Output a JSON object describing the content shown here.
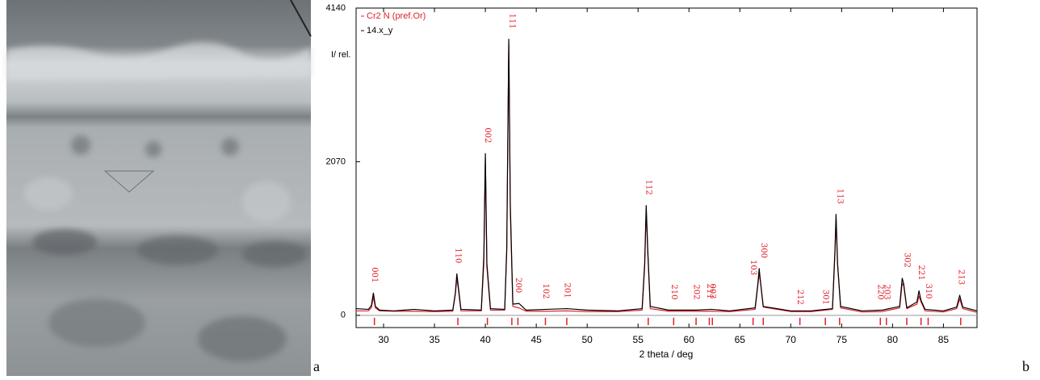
{
  "panel_labels": [
    "a",
    "b"
  ],
  "chart_data": {
    "type": "line",
    "xlabel": "2 theta / deg",
    "ylabel": "I/ rel.",
    "xlim": [
      27.3,
      88.3
    ],
    "xticks": [
      30,
      35,
      40,
      45,
      50,
      55,
      60,
      65,
      70,
      75,
      80,
      85
    ],
    "ylim": [
      -165,
      4140
    ],
    "yticks": [
      0,
      2070,
      4140
    ],
    "legend": "upper left",
    "x": [
      27.3,
      28.5,
      28.8,
      29.0,
      29.2,
      29.6,
      31.0,
      33.0,
      35.0,
      36.8,
      37.05,
      37.2,
      37.35,
      37.6,
      39.6,
      39.85,
      40.0,
      40.15,
      40.5,
      41.9,
      42.1,
      42.3,
      42.45,
      42.7,
      43.3,
      44.0,
      46.0,
      48.0,
      50.0,
      53.0,
      55.4,
      55.65,
      55.8,
      55.95,
      56.2,
      58.0,
      60.7,
      62.2,
      64.0,
      66.5,
      66.75,
      66.9,
      67.05,
      67.3,
      70.0,
      72.0,
      74.1,
      74.35,
      74.45,
      74.6,
      74.9,
      77.0,
      79.0,
      80.7,
      80.95,
      81.1,
      81.4,
      82.4,
      82.6,
      82.8,
      83.2,
      85.0,
      86.3,
      86.6,
      86.9,
      88.3
    ],
    "series": [
      {
        "name": "Cr2 N (pref.Or)",
        "color": "#e0202a",
        "values": [
          60,
          60,
          100,
          250,
          100,
          60,
          55,
          55,
          50,
          55,
          280,
          500,
          350,
          60,
          60,
          700,
          2120,
          650,
          70,
          70,
          850,
          3680,
          1400,
          120,
          100,
          55,
          55,
          60,
          50,
          50,
          70,
          650,
          1420,
          850,
          90,
          55,
          55,
          55,
          50,
          80,
          380,
          560,
          430,
          110,
          50,
          50,
          80,
          850,
          1300,
          680,
          100,
          45,
          50,
          100,
          430,
          400,
          90,
          150,
          260,
          180,
          60,
          45,
          90,
          220,
          90,
          40
        ]
      },
      {
        "name": "14.x_y",
        "color": "#000000",
        "values": [
          90,
          80,
          130,
          300,
          120,
          70,
          60,
          80,
          60,
          70,
          300,
          560,
          380,
          80,
          70,
          800,
          2180,
          700,
          90,
          80,
          900,
          3720,
          1500,
          150,
          160,
          70,
          80,
          90,
          70,
          60,
          90,
          700,
          1480,
          900,
          120,
          70,
          70,
          80,
          60,
          100,
          400,
          630,
          420,
          120,
          60,
          60,
          90,
          900,
          1360,
          700,
          120,
          60,
          70,
          120,
          500,
          420,
          100,
          180,
          330,
          200,
          80,
          60,
          110,
          270,
          110,
          60
        ]
      }
    ],
    "reflections": {
      "color": "#e0202a",
      "x": [
        29.1,
        37.3,
        40.2,
        42.6,
        43.2,
        45.9,
        48.0,
        56.0,
        58.5,
        60.7,
        62.0,
        62.3,
        66.3,
        67.3,
        70.9,
        73.4,
        74.8,
        78.8,
        79.4,
        81.4,
        82.8,
        83.5,
        86.7
      ],
      "labels": [
        "001",
        "110",
        "002",
        "111",
        "200",
        "102",
        "201",
        "112",
        "210",
        "202",
        "211",
        "003",
        "103",
        "300",
        "212",
        "301",
        "113",
        "220",
        "203",
        "302",
        "221",
        "310",
        "213"
      ]
    }
  }
}
